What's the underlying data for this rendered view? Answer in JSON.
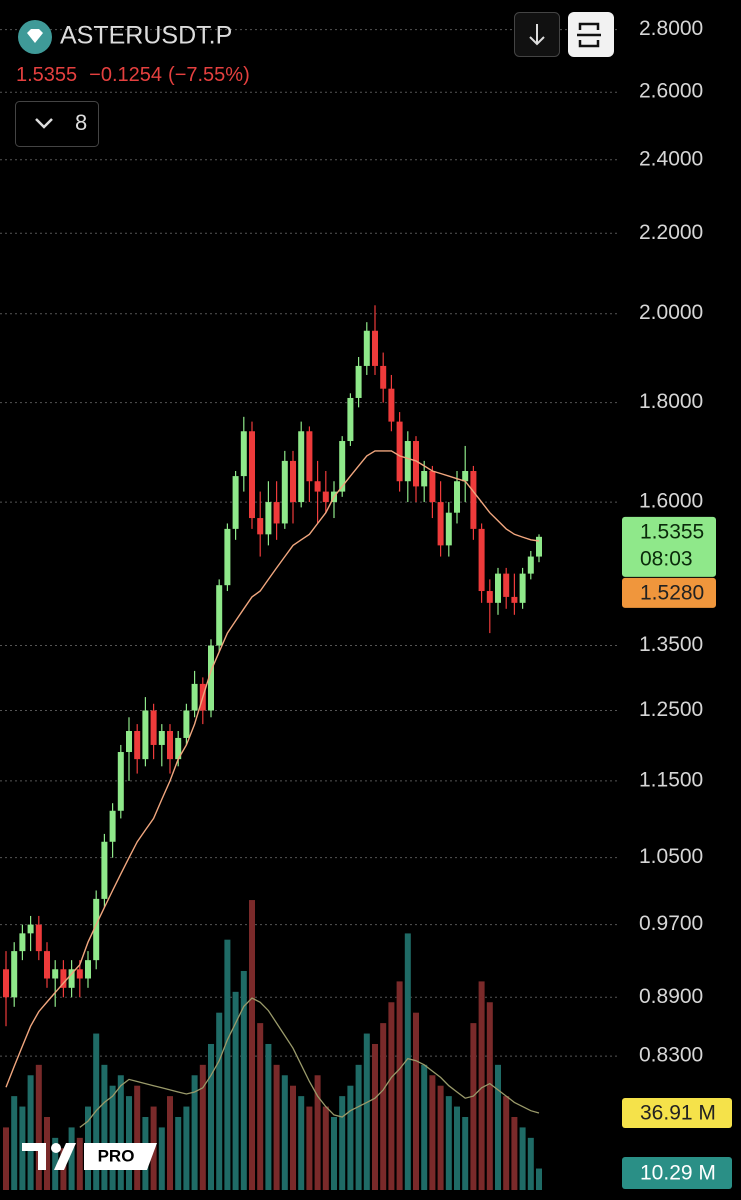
{
  "header": {
    "symbol": "ASTERUSDT.P",
    "price": "1.5355",
    "change": "−0.1254",
    "change_percent": "(−7.55%)",
    "indicators_count": "8"
  },
  "chart_data": {
    "type": "candlestick",
    "log_scale": true,
    "grid": true,
    "up_color": "#8fe88a",
    "down_color": "#ee3b3b",
    "ylim": [
      0.7,
      2.9
    ],
    "yticks": [
      {
        "value": 2.8,
        "label": "2.8000"
      },
      {
        "value": 2.6,
        "label": "2.6000"
      },
      {
        "value": 2.4,
        "label": "2.4000"
      },
      {
        "value": 2.2,
        "label": "2.2000"
      },
      {
        "value": 2.0,
        "label": "2.0000"
      },
      {
        "value": 1.8,
        "label": "1.8000"
      },
      {
        "value": 1.6,
        "label": "1.6000"
      },
      {
        "value": 1.35,
        "label": "1.3500"
      },
      {
        "value": 1.25,
        "label": "1.2500"
      },
      {
        "value": 1.15,
        "label": "1.1500"
      },
      {
        "value": 1.05,
        "label": "1.0500"
      },
      {
        "value": 0.97,
        "label": "0.9700"
      },
      {
        "value": 0.89,
        "label": "0.8900"
      },
      {
        "value": 0.83,
        "label": "0.8300"
      }
    ],
    "open": [
      0.92,
      0.89,
      0.94,
      0.96,
      0.97,
      0.94,
      0.91,
      0.92,
      0.9,
      0.92,
      0.91,
      0.93,
      1.0,
      1.07,
      1.11,
      1.19,
      1.22,
      1.18,
      1.25,
      1.2,
      1.22,
      1.18,
      1.21,
      1.25,
      1.29,
      1.25,
      1.35,
      1.45,
      1.55,
      1.65,
      1.74,
      1.57,
      1.54,
      1.6,
      1.56,
      1.68,
      1.6,
      1.74,
      1.64,
      1.62,
      1.6,
      1.62,
      1.72,
      1.81,
      1.88,
      1.96,
      1.88,
      1.83,
      1.76,
      1.64,
      1.72,
      1.63,
      1.66,
      1.6,
      1.52,
      1.58,
      1.64,
      1.66,
      1.55,
      1.44,
      1.42,
      1.47,
      1.43,
      1.42,
      1.47,
      1.5
    ],
    "high": [
      0.94,
      0.95,
      0.97,
      0.98,
      0.98,
      0.95,
      0.93,
      0.93,
      0.93,
      0.93,
      0.94,
      1.01,
      1.08,
      1.12,
      1.2,
      1.24,
      1.23,
      1.27,
      1.26,
      1.23,
      1.23,
      1.22,
      1.26,
      1.31,
      1.3,
      1.36,
      1.46,
      1.56,
      1.66,
      1.77,
      1.76,
      1.62,
      1.64,
      1.64,
      1.7,
      1.7,
      1.76,
      1.75,
      1.68,
      1.66,
      1.64,
      1.73,
      1.82,
      1.9,
      1.98,
      2.02,
      1.91,
      1.86,
      1.78,
      1.74,
      1.73,
      1.68,
      1.67,
      1.64,
      1.6,
      1.66,
      1.71,
      1.67,
      1.56,
      1.46,
      1.48,
      1.48,
      1.47,
      1.48,
      1.51,
      1.54
    ],
    "low": [
      0.86,
      0.88,
      0.93,
      0.94,
      0.93,
      0.9,
      0.88,
      0.89,
      0.89,
      0.89,
      0.9,
      0.92,
      0.99,
      1.05,
      1.1,
      1.15,
      1.16,
      1.17,
      1.18,
      1.17,
      1.16,
      1.17,
      1.2,
      1.24,
      1.23,
      1.24,
      1.34,
      1.44,
      1.53,
      1.62,
      1.55,
      1.5,
      1.52,
      1.53,
      1.55,
      1.56,
      1.59,
      1.6,
      1.56,
      1.58,
      1.57,
      1.61,
      1.71,
      1.79,
      1.86,
      1.86,
      1.8,
      1.74,
      1.62,
      1.6,
      1.6,
      1.6,
      1.57,
      1.5,
      1.5,
      1.56,
      1.6,
      1.53,
      1.42,
      1.37,
      1.4,
      1.41,
      1.4,
      1.41,
      1.46,
      1.49
    ],
    "close": [
      0.89,
      0.94,
      0.96,
      0.97,
      0.94,
      0.91,
      0.92,
      0.9,
      0.92,
      0.91,
      0.93,
      1.0,
      1.07,
      1.11,
      1.19,
      1.22,
      1.18,
      1.25,
      1.2,
      1.22,
      1.18,
      1.21,
      1.25,
      1.29,
      1.25,
      1.35,
      1.45,
      1.55,
      1.65,
      1.74,
      1.57,
      1.54,
      1.6,
      1.56,
      1.68,
      1.6,
      1.74,
      1.64,
      1.62,
      1.6,
      1.62,
      1.72,
      1.81,
      1.88,
      1.96,
      1.88,
      1.83,
      1.76,
      1.64,
      1.72,
      1.63,
      1.66,
      1.6,
      1.52,
      1.58,
      1.64,
      1.66,
      1.55,
      1.44,
      1.42,
      1.47,
      1.43,
      1.42,
      1.47,
      1.5,
      1.5355
    ],
    "ma": {
      "color": "#f0a67e",
      "values": [
        0.8,
        0.82,
        0.84,
        0.86,
        0.875,
        0.885,
        0.895,
        0.905,
        0.915,
        0.925,
        0.95,
        0.97,
        0.99,
        1.01,
        1.03,
        1.05,
        1.07,
        1.085,
        1.1,
        1.125,
        1.15,
        1.18,
        1.2,
        1.23,
        1.27,
        1.31,
        1.34,
        1.37,
        1.39,
        1.41,
        1.43,
        1.44,
        1.46,
        1.48,
        1.5,
        1.52,
        1.53,
        1.54,
        1.56,
        1.58,
        1.61,
        1.63,
        1.65,
        1.67,
        1.69,
        1.7,
        1.7,
        1.7,
        1.69,
        1.685,
        1.68,
        1.67,
        1.66,
        1.655,
        1.65,
        1.645,
        1.64,
        1.62,
        1.6,
        1.58,
        1.565,
        1.55,
        1.54,
        1.535,
        1.53,
        1.528
      ]
    },
    "volume": {
      "up_color": "#1f6b66",
      "down_color": "#7a2a2a",
      "ma_color": "#9a9a6a",
      "values": [
        30,
        45,
        40,
        55,
        60,
        35,
        25,
        20,
        30,
        25,
        40,
        75,
        60,
        50,
        55,
        45,
        50,
        35,
        40,
        30,
        45,
        35,
        40,
        55,
        60,
        70,
        85,
        120,
        95,
        105,
        139,
        80,
        70,
        60,
        55,
        50,
        45,
        40,
        55,
        40,
        35,
        45,
        50,
        60,
        75,
        70,
        80,
        90,
        100,
        123,
        85,
        60,
        55,
        50,
        45,
        40,
        35,
        80,
        100,
        90,
        60,
        45,
        35,
        30,
        25,
        10.29
      ],
      "ma_values": [
        null,
        null,
        null,
        null,
        null,
        null,
        null,
        null,
        null,
        30,
        33,
        38,
        42,
        45,
        50,
        53,
        52,
        51,
        50,
        49,
        48,
        47,
        46,
        47,
        49,
        55,
        62,
        72,
        80,
        88,
        92,
        90,
        86,
        80,
        74,
        68,
        60,
        52,
        45,
        40,
        36,
        35,
        38,
        40,
        42,
        44,
        48,
        54,
        58,
        63,
        62,
        60,
        57,
        54,
        50,
        47,
        44,
        45,
        49,
        51,
        48,
        45,
        42,
        40,
        38,
        36.91
      ]
    },
    "last_price_label": "1.5355",
    "countdown": "08:03",
    "ma_label": "1.5280",
    "volume_ma_label": "36.91 M",
    "volume_label": "10.29 M"
  },
  "logo": "PRO"
}
